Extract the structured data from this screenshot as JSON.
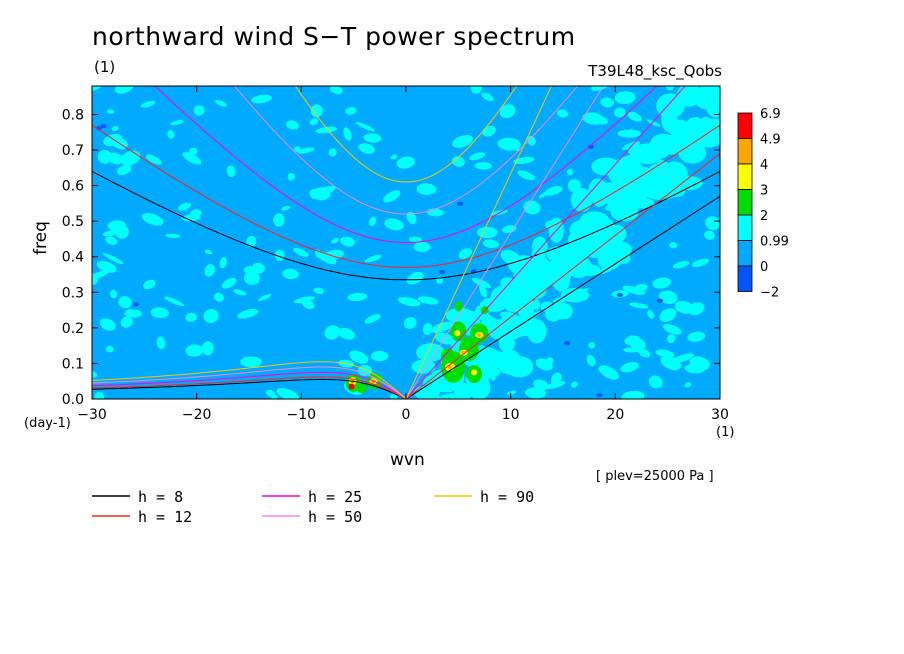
{
  "title": "northward wind S−T power spectrum",
  "unit_topleft": "(1)",
  "run_name": "T39L48_ksc_Qobs",
  "x_axis_unit": "(1)",
  "y_axis_unit": "(day-1)",
  "level_note": "[ plev=25000 Pa ]",
  "chart_data": {
    "type": "heatmap",
    "title": "northward wind S−T power spectrum",
    "xlabel": "wvn",
    "ylabel": "freq",
    "xlim": [
      -30,
      30
    ],
    "ylim": [
      0,
      0.88
    ],
    "x_ticks": [
      -30,
      -20,
      -10,
      0,
      10,
      20,
      30
    ],
    "y_ticks": [
      0.0,
      0.1,
      0.2,
      0.3,
      0.4,
      0.5,
      0.6,
      0.7,
      0.8
    ],
    "y_tick_labels": [
      "0.0",
      "0.1",
      "0.2",
      "0.3",
      "0.4",
      "0.5",
      "0.6",
      "0.7",
      "0.8"
    ],
    "colorbar": {
      "labels": [
        "6.9",
        "4.9",
        "4",
        "3",
        "2",
        "0.99",
        "0",
        "-2"
      ],
      "colors": [
        "#ff0000",
        "#ffa500",
        "#ffff00",
        "#00dd00",
        "#00ffff",
        "#00aaff",
        "#0055ff"
      ]
    },
    "legend": {
      "placement": "bottom",
      "entries": [
        {
          "label": "h =  8",
          "color": "#000000",
          "h": 8
        },
        {
          "label": "h = 12",
          "color": "#ff2020",
          "h": 12
        },
        {
          "label": "h = 25",
          "color": "#ff00cc",
          "h": 25
        },
        {
          "label": "h = 50",
          "color": "#ee88ee",
          "h": 50
        },
        {
          "label": "h = 90",
          "color": "#eecc00",
          "h": 90
        }
      ]
    },
    "dispersion_curves": [
      {
        "h": 8,
        "color": "#000000",
        "kelvin_end_freq": 0.57,
        "er_peak": 0.055,
        "ig_min": 0.335,
        "ig_at_m30": 0.64
      },
      {
        "h": 12,
        "color": "#ff2020",
        "kelvin_end_freq": 0.69,
        "er_peak": 0.062,
        "ig_min": 0.37,
        "ig_at_m30": 0.77
      },
      {
        "h": 25,
        "color": "#ff00cc",
        "kelvin_end_freq": 0.99,
        "er_peak": 0.075,
        "ig_min": 0.44,
        "ig_at_m30": 1.05
      },
      {
        "h": 50,
        "color": "#ee88ee",
        "kelvin_end_freq": 1.4,
        "er_peak": 0.09,
        "ig_min": 0.52,
        "ig_at_m30": 1.4
      },
      {
        "h": 90,
        "color": "#eecc00",
        "kelvin_end_freq": 1.9,
        "er_peak": 0.105,
        "ig_min": 0.61,
        "ig_at_m30": 1.9
      }
    ]
  }
}
